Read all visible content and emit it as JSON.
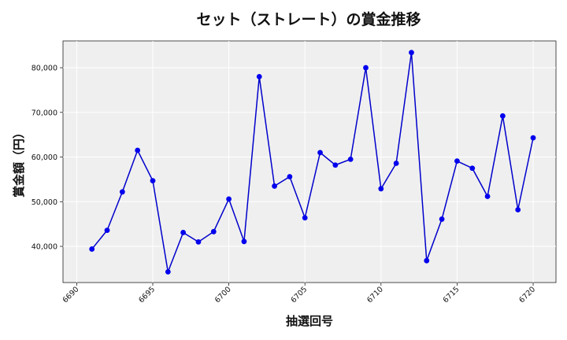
{
  "chart_data": {
    "type": "line",
    "title": "セット（ストレート）の賞金推移",
    "xlabel": "抽選回号",
    "ylabel": "賞金額（円）",
    "xlim": [
      6689.1,
      6721.5
    ],
    "ylim": [
      31900,
      86000
    ],
    "x_ticks": [
      6690,
      6695,
      6700,
      6705,
      6710,
      6715,
      6720
    ],
    "x_tick_labels": [
      "6690",
      "6695",
      "6700",
      "6705",
      "6710",
      "6715",
      "6720"
    ],
    "y_ticks": [
      40000,
      50000,
      60000,
      70000,
      80000
    ],
    "y_tick_labels": [
      "40,000",
      "50,000",
      "60,000",
      "70,000",
      "80,000"
    ],
    "grid": true,
    "legend": "none",
    "colors": {
      "line": "#0000cc",
      "marker": "#0000ee",
      "plot_bg": "#efefef",
      "grid": "#ffffff"
    },
    "x": [
      6691,
      6692,
      6693,
      6694,
      6695,
      6696,
      6697,
      6698,
      6699,
      6700,
      6701,
      6702,
      6703,
      6704,
      6705,
      6706,
      6707,
      6708,
      6709,
      6710,
      6711,
      6712,
      6713,
      6714,
      6715,
      6716,
      6717,
      6718,
      6719,
      6720
    ],
    "series": [
      {
        "values": [
          39400,
          43600,
          52200,
          61500,
          54700,
          34300,
          43100,
          41000,
          43300,
          50600,
          41100,
          78000,
          53500,
          55600,
          46400,
          61000,
          58200,
          59500,
          80000,
          52900,
          58600,
          83400,
          36800,
          46100,
          59100,
          57500,
          51200,
          69200,
          48200,
          64300
        ]
      }
    ]
  }
}
